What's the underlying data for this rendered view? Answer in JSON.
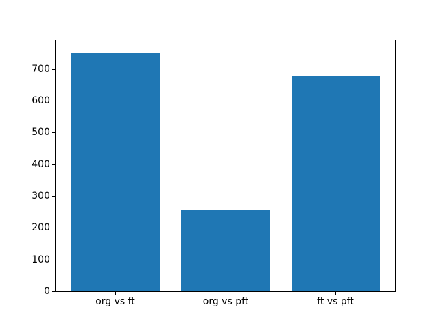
{
  "chart_data": {
    "type": "bar",
    "title": "",
    "xlabel": "",
    "ylabel": "",
    "categories": [
      "org vs ft",
      "org vs pft",
      "ft vs pft"
    ],
    "values": [
      752,
      257,
      678
    ],
    "ylim": [
      0,
      790
    ],
    "yticks": [
      0,
      100,
      200,
      300,
      400,
      500,
      600,
      700
    ],
    "bar_color": "#1f77b4",
    "grid": false,
    "legend": null
  }
}
